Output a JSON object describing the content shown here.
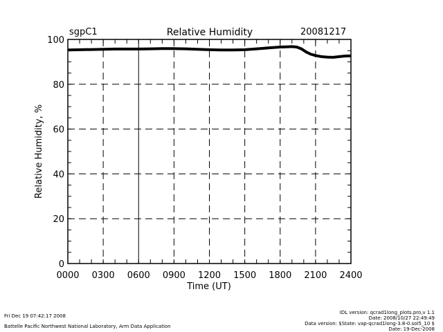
{
  "header": {
    "site": "sgpC1",
    "title": "Relative Humidity",
    "date": "20081217"
  },
  "chart_data": {
    "type": "line",
    "title": "Relative Humidity",
    "xlabel": "Time (UT)",
    "ylabel": "Relative Humidity, %",
    "xlim": [
      0,
      24
    ],
    "ylim": [
      0,
      100
    ],
    "xticks": [
      "0000",
      "0300",
      "0600",
      "0900",
      "1200",
      "1500",
      "1800",
      "2100",
      "2400"
    ],
    "yticks": [
      "0",
      "20",
      "40",
      "60",
      "80",
      "100"
    ],
    "grid": true,
    "series": [
      {
        "color": "#000000",
        "x": [
          0,
          1,
          2,
          3,
          4,
          5,
          6,
          7,
          8,
          9,
          10,
          11,
          12,
          13,
          14,
          15,
          16,
          17,
          18,
          18.5,
          19,
          19.4,
          19.8,
          20.2,
          20.6,
          21,
          21.5,
          22,
          22.5,
          23,
          23.5,
          24
        ],
        "y": [
          95.3,
          95.4,
          95.5,
          95.6,
          95.7,
          95.7,
          95.7,
          95.8,
          95.9,
          95.9,
          95.8,
          95.6,
          95.4,
          95.3,
          95.3,
          95.4,
          95.8,
          96.2,
          96.6,
          96.7,
          96.8,
          96.6,
          95.8,
          94.4,
          93.4,
          92.8,
          92.3,
          92.1,
          92.0,
          92.3,
          92.6,
          92.7
        ]
      }
    ]
  },
  "footer": {
    "timestamp": "Fri Dec 19 07:42:17 2008",
    "organization": "Battelle Pacific Northwest National Laboratory, Arm Data Application",
    "idl_version": "IDL version: qcrad1long_plots.pro,v 1.1",
    "idl_date": "Date: 2008/10/27 22:49:49",
    "data_version": "Data version: $State: vap-qcrad1long-3.8-0.sol5_10 $",
    "data_date": "Date: 19-Dec-2008"
  }
}
